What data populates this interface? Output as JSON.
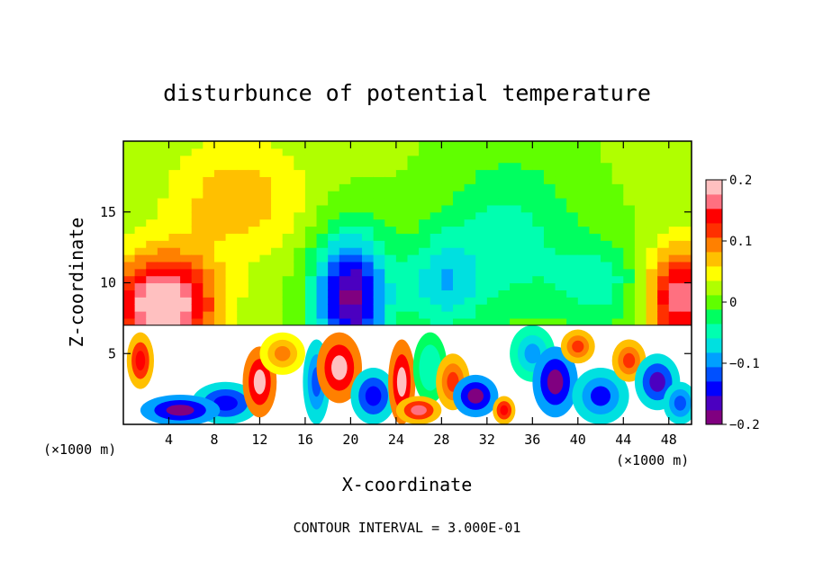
{
  "chart_data": {
    "type": "heatmap",
    "title": "disturbunce of potential temperature",
    "xlabel": "X-coordinate",
    "ylabel": "Z-coordinate",
    "x_unit_left": "(×1000 m)",
    "x_unit_right": "(×1000 m)",
    "xlim": [
      0,
      50
    ],
    "ylim": [
      0,
      20
    ],
    "x_ticks": [
      {
        "value": 4,
        "label": "4"
      },
      {
        "value": 8,
        "label": "8"
      },
      {
        "value": 12,
        "label": "12"
      },
      {
        "value": 16,
        "label": "16"
      },
      {
        "value": 20,
        "label": "20"
      },
      {
        "value": 24,
        "label": "24"
      },
      {
        "value": 28,
        "label": "28"
      },
      {
        "value": 32,
        "label": "32"
      },
      {
        "value": 36,
        "label": "36"
      },
      {
        "value": 40,
        "label": "40"
      },
      {
        "value": 44,
        "label": "44"
      },
      {
        "value": 48,
        "label": "48"
      }
    ],
    "y_ticks": [
      {
        "value": 5,
        "label": "5"
      },
      {
        "value": 10,
        "label": "10"
      },
      {
        "value": 15,
        "label": "15"
      }
    ],
    "colorbar": {
      "range": [
        -0.2,
        0.2
      ],
      "ticks": [
        {
          "value": 0.2,
          "label": "0.2"
        },
        {
          "value": 0.1,
          "label": "0.1"
        },
        {
          "value": 0,
          "label": "0"
        },
        {
          "value": -0.1,
          "label": "−0.1"
        },
        {
          "value": -0.2,
          "label": "−0.2"
        }
      ],
      "colors": [
        "#800080",
        "#4b00c0",
        "#0000ff",
        "#0050ff",
        "#00a0ff",
        "#00e0e0",
        "#00ffb0",
        "#00ff60",
        "#60ff00",
        "#b0ff00",
        "#ffff00",
        "#ffc000",
        "#ff8000",
        "#ff3000",
        "#ff0000",
        "#ff7080",
        "#ffc0c0"
      ]
    },
    "annotation": "CONTOUR INTERVAL = 3.000E-01",
    "field_features": [
      {
        "type": "warm",
        "x": 3.5,
        "z": 8.5,
        "amp": 0.2,
        "sx": 4.5,
        "sz": 3.5
      },
      {
        "type": "warm",
        "x": 49,
        "z": 9,
        "amp": 0.16,
        "sx": 3,
        "sz": 3.5
      },
      {
        "type": "cool",
        "x": 20,
        "z": 9,
        "amp": -0.2,
        "sx": 3.2,
        "sz": 4.5
      },
      {
        "type": "cool",
        "x": 28,
        "z": 10,
        "amp": -0.08,
        "sx": 3.5,
        "sz": 3.5
      },
      {
        "type": "cool",
        "x": 34,
        "z": 13,
        "amp": -0.06,
        "sx": 6,
        "sz": 6
      },
      {
        "type": "cool",
        "x": 42,
        "z": 10,
        "amp": -0.06,
        "sx": 4,
        "sz": 3
      },
      {
        "type": "warm",
        "x": 10,
        "z": 16,
        "amp": 0.06,
        "sx": 6,
        "sz": 4
      }
    ],
    "layer_top_z": 7
  }
}
